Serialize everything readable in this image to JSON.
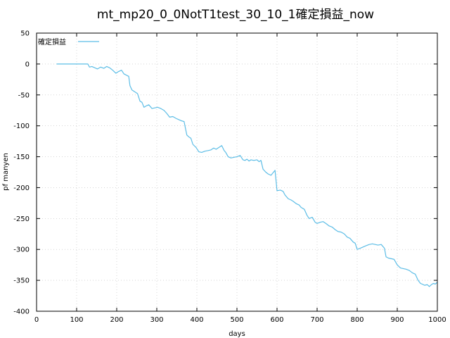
{
  "chart_data": {
    "type": "line",
    "title": "mt_mp20_0_0NotT1test_30_10_1確定損益_now",
    "xlabel": "days",
    "ylabel": "pf manyen",
    "xlim": [
      0,
      1000
    ],
    "ylim": [
      -400,
      50
    ],
    "xticks": [
      0,
      100,
      200,
      300,
      400,
      500,
      600,
      700,
      800,
      900,
      1000
    ],
    "yticks": [
      50,
      0,
      -50,
      -100,
      -150,
      -200,
      -250,
      -300,
      -350,
      -400
    ],
    "grid": true,
    "legend_position": "top-left",
    "series": [
      {
        "name": "確定損益",
        "color": "#5cbde6",
        "x": [
          50,
          60,
          70,
          80,
          90,
          100,
          110,
          120,
          128,
          132,
          138,
          145,
          152,
          160,
          168,
          175,
          182,
          190,
          198,
          205,
          212,
          218,
          224,
          230,
          233,
          238,
          245,
          252,
          258,
          263,
          268,
          273,
          280,
          288,
          295,
          302,
          310,
          318,
          325,
          332,
          340,
          348,
          355,
          362,
          368,
          375,
          380,
          385,
          390,
          398,
          405,
          412,
          420,
          428,
          435,
          442,
          448,
          455,
          462,
          468,
          472,
          478,
          485,
          492,
          500,
          508,
          515,
          520,
          525,
          530,
          535,
          542,
          550,
          555,
          560,
          565,
          572,
          578,
          585,
          590,
          595,
          600,
          608,
          615,
          620,
          628,
          635,
          640,
          648,
          655,
          660,
          668,
          675,
          680,
          688,
          695,
          700,
          708,
          715,
          722,
          730,
          738,
          745,
          752,
          760,
          768,
          775,
          782,
          790,
          795,
          800,
          808,
          815,
          822,
          830,
          838,
          845,
          852,
          860,
          868,
          872,
          878,
          885,
          892,
          900,
          908,
          915,
          922,
          930,
          938,
          945,
          952,
          958,
          962,
          968,
          975,
          980,
          985,
          990,
          995,
          1000
        ],
        "y": [
          0,
          0,
          0,
          0,
          0,
          0,
          0,
          0,
          0,
          -5,
          -4,
          -6,
          -8,
          -5,
          -7,
          -4,
          -6,
          -10,
          -15,
          -12,
          -10,
          -16,
          -18,
          -20,
          -35,
          -42,
          -45,
          -48,
          -60,
          -62,
          -70,
          -68,
          -66,
          -72,
          -71,
          -70,
          -72,
          -75,
          -80,
          -86,
          -85,
          -88,
          -90,
          -92,
          -93,
          -115,
          -118,
          -120,
          -130,
          -135,
          -142,
          -143,
          -141,
          -140,
          -139,
          -136,
          -138,
          -135,
          -132,
          -140,
          -143,
          -150,
          -152,
          -151,
          -150,
          -148,
          -155,
          -156,
          -154,
          -157,
          -155,
          -156,
          -155,
          -158,
          -156,
          -170,
          -175,
          -178,
          -180,
          -176,
          -172,
          -205,
          -204,
          -206,
          -212,
          -218,
          -220,
          -222,
          -226,
          -228,
          -232,
          -235,
          -245,
          -250,
          -248,
          -256,
          -258,
          -256,
          -255,
          -258,
          -262,
          -264,
          -268,
          -271,
          -272,
          -275,
          -280,
          -282,
          -288,
          -290,
          -300,
          -298,
          -296,
          -294,
          -292,
          -291,
          -292,
          -293,
          -292,
          -298,
          -312,
          -314,
          -315,
          -316,
          -325,
          -330,
          -331,
          -332,
          -334,
          -338,
          -340,
          -350,
          -355,
          -356,
          -358,
          -357,
          -360,
          -357,
          -355,
          -356,
          -353
        ]
      }
    ]
  }
}
